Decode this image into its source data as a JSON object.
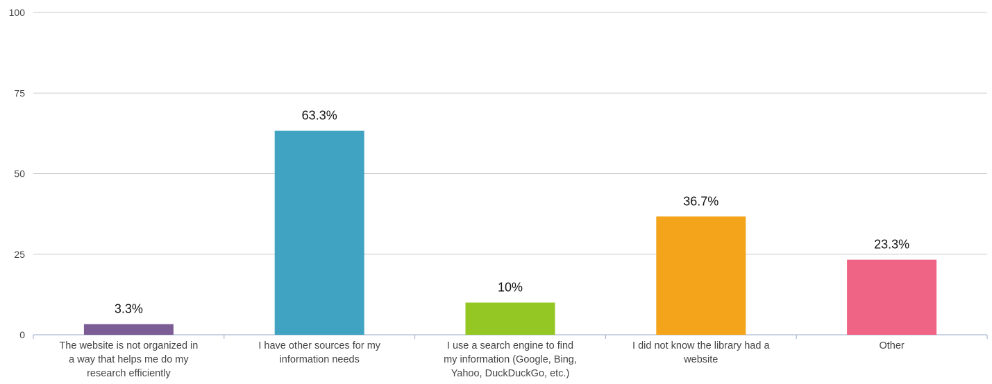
{
  "chart_data": {
    "type": "bar",
    "title": "",
    "xlabel": "",
    "ylabel": "",
    "ylim": [
      0,
      100
    ],
    "yticks": [
      0,
      25,
      50,
      75,
      100
    ],
    "grid": true,
    "categories": [
      "The website is not organized in a way that helps me do my research efficiently",
      "I have other sources for my information needs",
      "I use a search engine to find my information (Google, Bing, Yahoo, DuckDuckGo, etc.)",
      "I did not know the library had a website",
      "Other"
    ],
    "category_lines": [
      [
        "The website is not organized in",
        "a way that helps me do my",
        "research efficiently"
      ],
      [
        "I have other sources for my",
        "information needs"
      ],
      [
        "I use a search engine to find",
        "my information (Google, Bing,",
        "Yahoo, DuckDuckGo, etc.)"
      ],
      [
        "I did not know the library had a",
        "website"
      ],
      [
        "Other"
      ]
    ],
    "values": [
      3.3,
      63.3,
      10,
      36.7,
      23.3
    ],
    "data_labels": [
      "3.3%",
      "63.3%",
      "10%",
      "36.7%",
      "23.3%"
    ],
    "colors": [
      "#7b5c95",
      "#40a3c2",
      "#94c724",
      "#f4a41b",
      "#ef6484"
    ]
  }
}
